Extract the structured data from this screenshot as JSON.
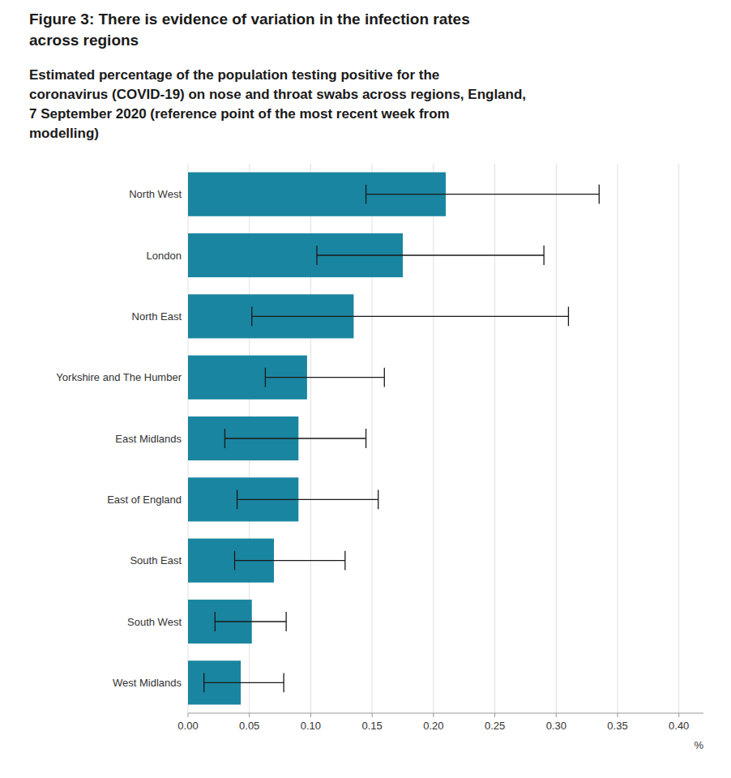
{
  "chart_data": {
    "type": "bar",
    "orientation": "horizontal",
    "title": [
      "Figure 3: There is evidence of variation in the infection rates",
      "across regions"
    ],
    "subtitle": [
      "Estimated percentage of the population testing positive for the",
      "coronavirus (COVID-19) on nose and throat swabs across regions, England,",
      "7 September 2020 (reference point of the most recent week from",
      "modelling)"
    ],
    "categories": [
      "North West",
      "London",
      "North East",
      "Yorkshire and The Humber",
      "East Midlands",
      "East of England",
      "South East",
      "South West",
      "West Midlands"
    ],
    "values": [
      0.21,
      0.175,
      0.135,
      0.097,
      0.09,
      0.09,
      0.07,
      0.052,
      0.043
    ],
    "error_bars": {
      "lower": [
        0.145,
        0.105,
        0.052,
        0.063,
        0.03,
        0.04,
        0.038,
        0.022,
        0.013
      ],
      "upper": [
        0.335,
        0.29,
        0.31,
        0.16,
        0.145,
        0.155,
        0.128,
        0.08,
        0.078
      ],
      "color": "#1a1a1a"
    },
    "color": "#1a85a0",
    "xlim": [
      0.0,
      0.42
    ],
    "xticks": [
      {
        "value": 0.0,
        "label": "0.00"
      },
      {
        "value": 0.05,
        "label": "0.05"
      },
      {
        "value": 0.1,
        "label": "0.10"
      },
      {
        "value": 0.15,
        "label": "0.15"
      },
      {
        "value": 0.2,
        "label": "0.20"
      },
      {
        "value": 0.25,
        "label": "0.25"
      },
      {
        "value": 0.3,
        "label": "0.30"
      },
      {
        "value": 0.35,
        "label": "0.35"
      },
      {
        "value": 0.4,
        "label": "0.40"
      }
    ],
    "xlabel": "%",
    "grid": true
  }
}
